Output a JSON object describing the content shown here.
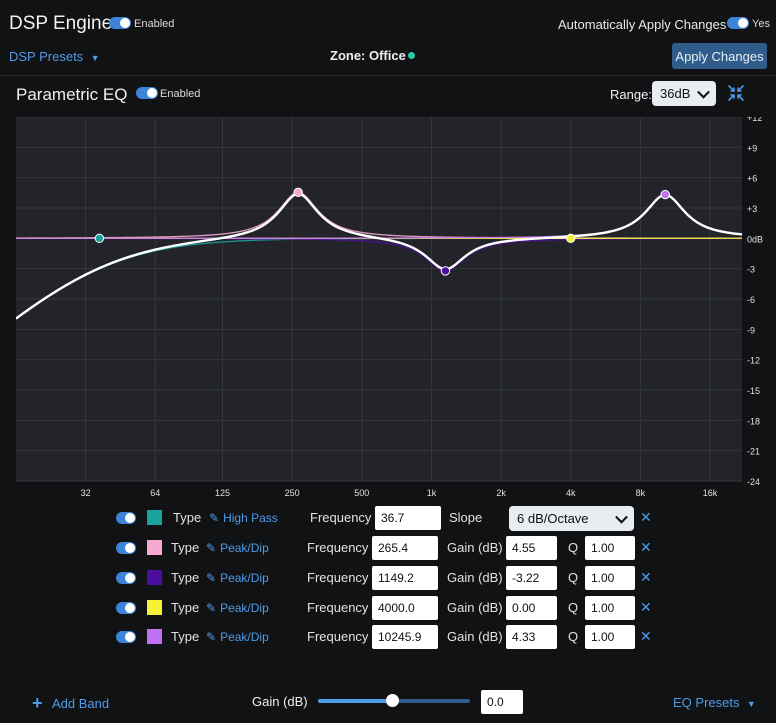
{
  "header": {
    "title": "DSP Engine",
    "enabled_label": "Enabled",
    "auto_apply_label": "Automatically Apply Changes",
    "auto_apply_state": "Yes",
    "presets_label": "DSP Presets",
    "zone_label": "Zone: Office",
    "zone_status_color": "#29c9a6",
    "apply_button": "Apply Changes"
  },
  "eq": {
    "title": "Parametric EQ",
    "enabled_label": "Enabled",
    "range_label": "Range:",
    "range_value": "36dB",
    "collapse_icon": "collapse-arrows-icon"
  },
  "chart_data": {
    "type": "line",
    "x_scale": "log",
    "xlabel": "",
    "ylabel": "",
    "x_ticks": [
      32,
      64,
      125,
      250,
      500,
      "1k",
      "2k",
      "4k",
      "8k",
      "16k"
    ],
    "y_ticks": [
      "+12",
      "+9",
      "+6",
      "+3",
      "0dB",
      "-3",
      "-6",
      "-9",
      "-12",
      "-15",
      "-18",
      "-21",
      "-24"
    ],
    "ylim": [
      -24,
      12
    ],
    "xlim": [
      16,
      22000
    ],
    "grid": true,
    "band_points": [
      {
        "freq": 36.7,
        "gain": 0.0,
        "color": "#1aa39a"
      },
      {
        "freq": 265.4,
        "gain": 4.55,
        "color": "#f7a8d0"
      },
      {
        "freq": 1149.2,
        "gain": -3.22,
        "color": "#4b0fa0"
      },
      {
        "freq": 4000.0,
        "gain": 0.0,
        "color": "#f4f136"
      },
      {
        "freq": 10245.9,
        "gain": 4.33,
        "color": "#c070f0"
      }
    ]
  },
  "bands": [
    {
      "color": "#1aa39a",
      "type_label": "Type",
      "type": "High Pass",
      "freq_label": "Frequency",
      "freq": "36.7",
      "param_label": "Slope",
      "slope": "6 dB/Octave"
    },
    {
      "color": "#f7a8d0",
      "type_label": "Type",
      "type": "Peak/Dip",
      "freq_label": "Frequency",
      "freq": "265.4",
      "param_label": "Gain (dB)",
      "gain": "4.55",
      "q_label": "Q",
      "q": "1.00"
    },
    {
      "color": "#4b0fa0",
      "type_label": "Type",
      "type": "Peak/Dip",
      "freq_label": "Frequency",
      "freq": "1149.2",
      "param_label": "Gain (dB)",
      "gain": "-3.22",
      "q_label": "Q",
      "q": "1.00"
    },
    {
      "color": "#f4f136",
      "type_label": "Type",
      "type": "Peak/Dip",
      "freq_label": "Frequency",
      "freq": "4000.0",
      "param_label": "Gain (dB)",
      "gain": "0.00",
      "q_label": "Q",
      "q": "1.00"
    },
    {
      "color": "#c070f0",
      "type_label": "Type",
      "type": "Peak/Dip",
      "freq_label": "Frequency",
      "freq": "10245.9",
      "param_label": "Gain (dB)",
      "gain": "4.33",
      "q_label": "Q",
      "q": "1.00"
    }
  ],
  "footer": {
    "add_band": "Add Band",
    "gain_label": "Gain (dB)",
    "gain_value": "0.0",
    "gain_slider_fraction": 0.49,
    "eq_presets": "EQ Presets"
  },
  "colors": {
    "accent": "#4f9be8",
    "background": "#111214",
    "plot_background": "#222429"
  }
}
